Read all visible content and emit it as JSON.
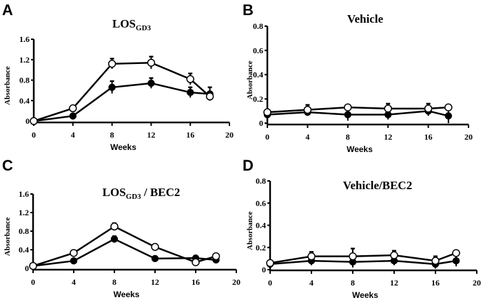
{
  "chart_data": [
    {
      "panel_label": "A",
      "type": "line",
      "title": "LOS",
      "title_sub": "GD3",
      "xlabel": "Weeks",
      "ylabel": "Absorbance",
      "xlim": [
        0,
        20
      ],
      "xticks": [
        "0",
        "4",
        "8",
        "12",
        "16",
        "20"
      ],
      "ylim": [
        0,
        1.6
      ],
      "yticks": [
        "0",
        "0.4",
        "0.8",
        "1.2",
        "1.6"
      ],
      "x": [
        0,
        4,
        8,
        12,
        16,
        18
      ],
      "series": [
        {
          "name": "open",
          "marker": "open-circle",
          "values": [
            0.0,
            0.25,
            1.12,
            1.14,
            0.82,
            0.48
          ],
          "error": [
            0.02,
            0.04,
            0.1,
            0.12,
            0.11,
            0.08
          ]
        },
        {
          "name": "filled",
          "marker": "filled-circle",
          "values": [
            0.0,
            0.1,
            0.66,
            0.74,
            0.56,
            0.53
          ],
          "error": [
            0.02,
            0.03,
            0.12,
            0.1,
            0.1,
            0.13
          ]
        }
      ]
    },
    {
      "panel_label": "B",
      "type": "line",
      "title": "Vehicle",
      "title_sub": "",
      "xlabel": "Weeks",
      "ylabel": "Absorbance",
      "xlim": [
        0,
        20
      ],
      "xticks": [
        "0",
        "4",
        "8",
        "12",
        "16",
        "20"
      ],
      "ylim": [
        0,
        0.8
      ],
      "yticks": [
        "0",
        "0.2",
        "0.4",
        "0.6",
        "0.8"
      ],
      "x": [
        0,
        4,
        8,
        12,
        16,
        18
      ],
      "series": [
        {
          "name": "open",
          "marker": "open-circle",
          "values": [
            0.09,
            0.11,
            0.13,
            0.12,
            0.12,
            0.13
          ],
          "error": [
            0.02,
            0.04,
            0.01,
            0.04,
            0.04,
            0.01
          ]
        },
        {
          "name": "filled",
          "marker": "filled-circle",
          "values": [
            0.07,
            0.09,
            0.07,
            0.07,
            0.1,
            0.06
          ],
          "error": [
            0.02,
            0.03,
            0.05,
            0.04,
            0.04,
            0.06
          ]
        }
      ]
    },
    {
      "panel_label": "C",
      "type": "line",
      "title": "LOS",
      "title_sub": "GD3",
      "title_suffix": " / BEC2",
      "xlabel": "Weeks",
      "ylabel": "Absorbance",
      "xlim": [
        0,
        20
      ],
      "xticks": [
        "0",
        "4",
        "8",
        "12",
        "16",
        "20"
      ],
      "ylim": [
        0,
        1.6
      ],
      "yticks": [
        "0",
        "0.4",
        "0.8",
        "1.2",
        "1.6"
      ],
      "x": [
        0,
        4,
        8,
        12,
        16,
        18
      ],
      "series": [
        {
          "name": "open",
          "marker": "open-circle",
          "values": [
            0.05,
            0.33,
            0.9,
            0.46,
            0.13,
            0.26
          ],
          "error": [
            0.02,
            0.05,
            0.07,
            0.06,
            0.06,
            0.03
          ]
        },
        {
          "name": "filled",
          "marker": "filled-circle",
          "values": [
            0.05,
            0.16,
            0.63,
            0.21,
            0.22,
            0.18
          ],
          "error": [
            0.02,
            0.04,
            0.06,
            0.03,
            0.04,
            0.05
          ]
        }
      ]
    },
    {
      "panel_label": "D",
      "type": "line",
      "title": "Vehicle/BEC2",
      "title_sub": "",
      "xlabel": "Weeks",
      "ylabel": "Absorbance",
      "xlim": [
        0,
        20
      ],
      "xticks": [
        "0",
        "4",
        "8",
        "12",
        "16",
        "20"
      ],
      "ylim": [
        0,
        0.8
      ],
      "yticks": [
        "0",
        "0.2",
        "0.4",
        "0.6",
        "0.8"
      ],
      "x": [
        0,
        4,
        8,
        12,
        16,
        18
      ],
      "series": [
        {
          "name": "open",
          "marker": "open-circle",
          "values": [
            0.06,
            0.12,
            0.12,
            0.13,
            0.08,
            0.15
          ],
          "error": [
            0.01,
            0.04,
            0.07,
            0.04,
            0.04,
            0.01
          ]
        },
        {
          "name": "filled",
          "marker": "filled-circle",
          "values": [
            0.05,
            0.08,
            0.07,
            0.08,
            0.05,
            0.08
          ],
          "error": [
            0.02,
            0.04,
            0.05,
            0.04,
            0.04,
            0.05
          ]
        }
      ]
    }
  ]
}
